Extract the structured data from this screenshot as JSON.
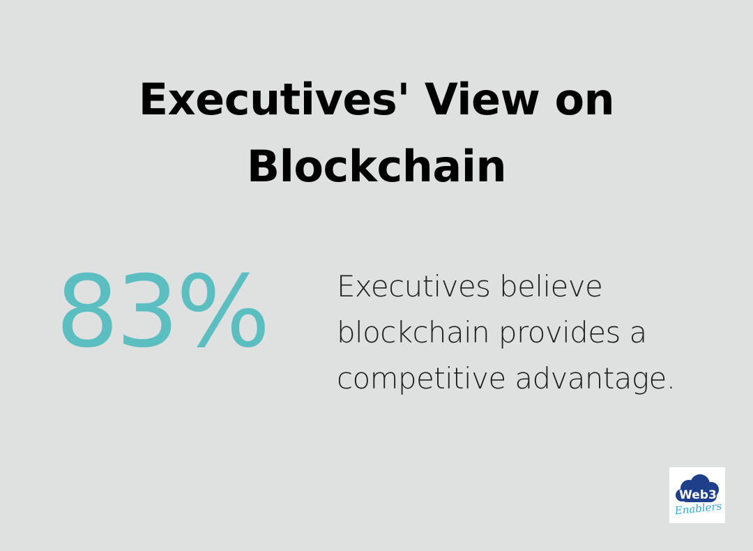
{
  "title": {
    "line1": "Executives' View on",
    "line2": "Blockchain"
  },
  "stat": {
    "value": "83%",
    "description_lines": [
      "Executives believe",
      "blockchain provides a",
      "competitive advantage."
    ]
  },
  "logo": {
    "text_main": "Web3",
    "text_script": "Enablers"
  },
  "colors": {
    "background": "#dfe1e0",
    "accent": "#5bbec1",
    "logo_cloud": "#1e3f8a",
    "logo_script": "#29a8df"
  }
}
